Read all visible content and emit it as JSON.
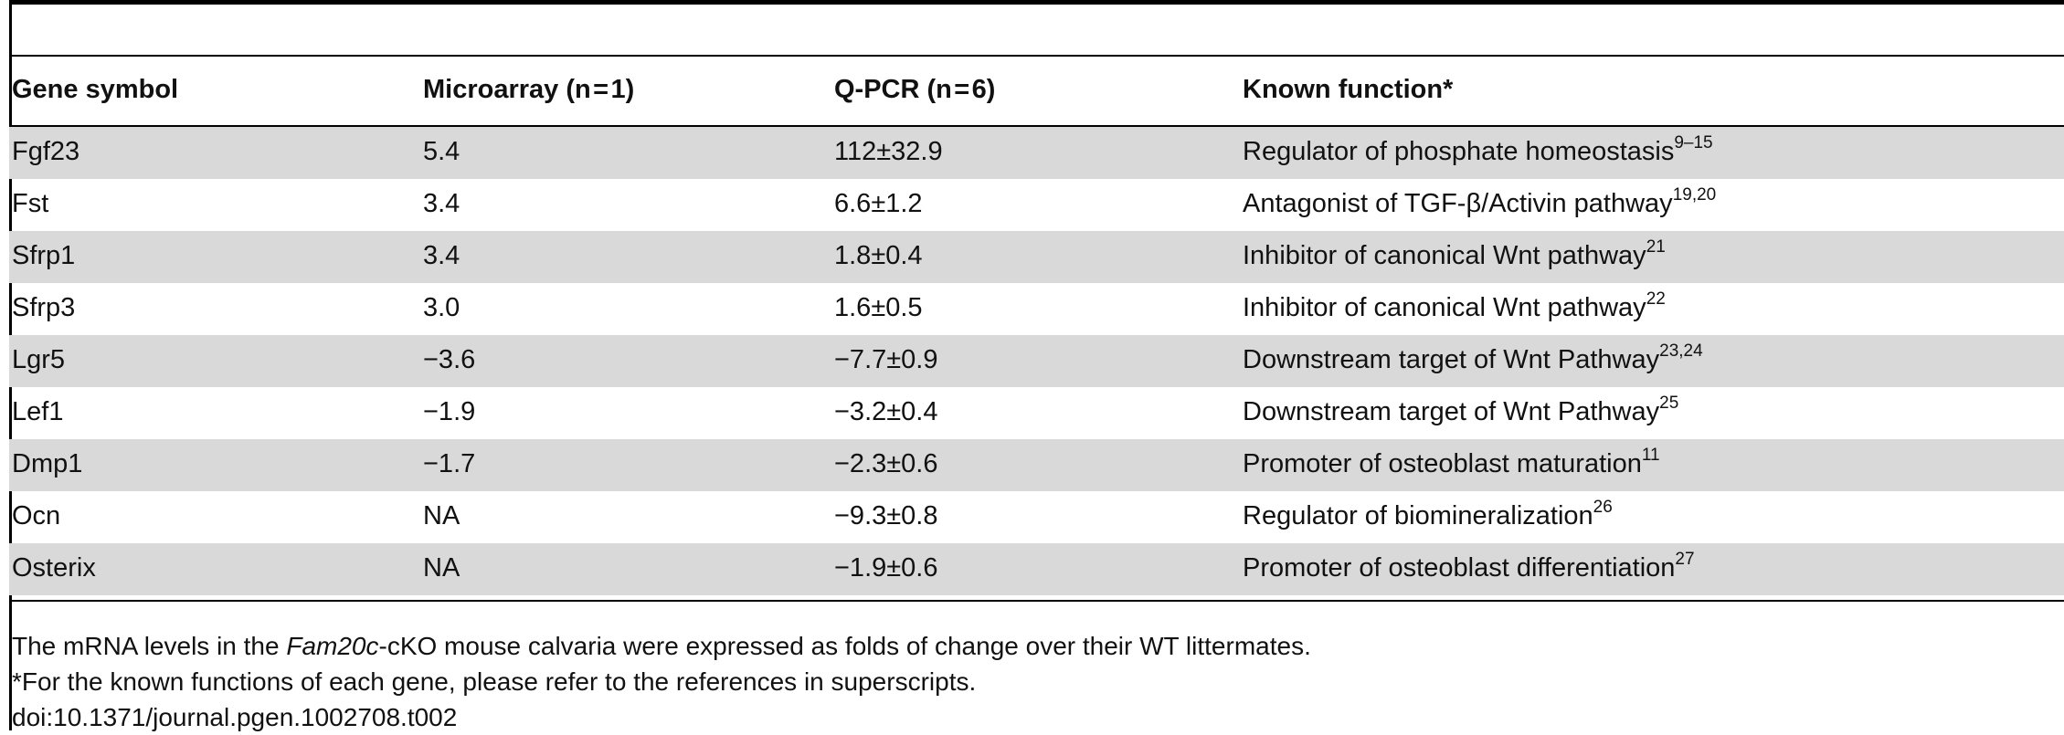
{
  "table": {
    "headers": [
      "Gene symbol",
      "Microarray (n = 1)",
      "Q-PCR (n = 6)",
      "Known function*"
    ],
    "rows": [
      {
        "gene": "Fgf23",
        "microarray": "5.4",
        "qpcr": "112±32.9",
        "function": "Regulator of phosphate homeostasis",
        "ref": "9–15"
      },
      {
        "gene": "Fst",
        "microarray": "3.4",
        "qpcr": "6.6±1.2",
        "function": "Antagonist of TGF-β/Activin pathway",
        "ref": "19,20"
      },
      {
        "gene": "Sfrp1",
        "microarray": "3.4",
        "qpcr": "1.8±0.4",
        "function": "Inhibitor of canonical Wnt pathway",
        "ref": "21"
      },
      {
        "gene": "Sfrp3",
        "microarray": "3.0",
        "qpcr": "1.6±0.5",
        "function": "Inhibitor of canonical Wnt pathway",
        "ref": "22"
      },
      {
        "gene": "Lgr5",
        "microarray": "−3.6",
        "qpcr": "−7.7±0.9",
        "function": "Downstream target of Wnt Pathway",
        "ref": "23,24"
      },
      {
        "gene": "Lef1",
        "microarray": "−1.9",
        "qpcr": "−3.2±0.4",
        "function": "Downstream target of Wnt Pathway",
        "ref": "25"
      },
      {
        "gene": "Dmp1",
        "microarray": "−1.7",
        "qpcr": "−2.3±0.6",
        "function": "Promoter of osteoblast maturation",
        "ref": "11"
      },
      {
        "gene": "Ocn",
        "microarray": "NA",
        "qpcr": "−9.3±0.8",
        "function": "Regulator of biomineralization",
        "ref": "26"
      },
      {
        "gene": "Osterix",
        "microarray": "NA",
        "qpcr": "−1.9±0.6",
        "function": "Promoter of osteoblast differentiation",
        "ref": "27"
      }
    ]
  },
  "footnotes": {
    "line1_prefix": "The mRNA levels in the ",
    "line1_italic": "Fam20c",
    "line1_suffix": "-cKO mouse calvaria were expressed as folds of change over their WT littermates.",
    "line2": "*For the known functions of each gene, please refer to the references in superscripts.",
    "doi": "doi:10.1371/journal.pgen.1002708.t002"
  }
}
